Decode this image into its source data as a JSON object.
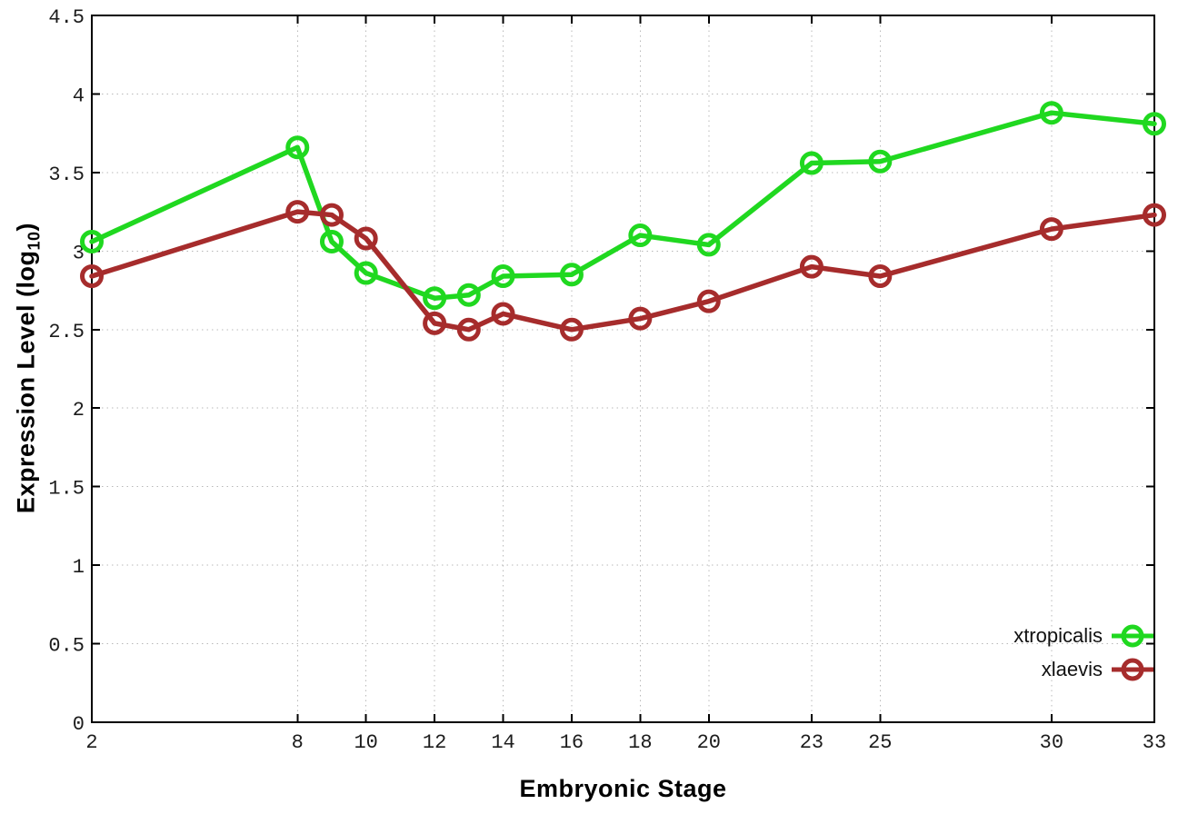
{
  "chart_data": {
    "type": "line",
    "title": "",
    "xlabel": "Embryonic Stage",
    "ylabel_parts": {
      "base": "Expression Level (log",
      "sub": "10",
      "close": ")"
    },
    "x": [
      2,
      8,
      9,
      10,
      12,
      13,
      14,
      16,
      18,
      20,
      23,
      25,
      30,
      33
    ],
    "series": [
      {
        "name": "xtropicalis",
        "color": "#20d820",
        "values": [
          3.06,
          3.66,
          3.06,
          2.86,
          2.7,
          2.72,
          2.84,
          2.85,
          3.1,
          3.04,
          3.56,
          3.57,
          3.88,
          3.81
        ]
      },
      {
        "name": "xlaevis",
        "color": "#a62c2c",
        "values": [
          2.84,
          3.25,
          3.23,
          3.08,
          2.54,
          2.5,
          2.6,
          2.5,
          2.57,
          2.68,
          2.9,
          2.84,
          3.14,
          3.23
        ]
      }
    ],
    "xlim": [
      2,
      33
    ],
    "ylim": [
      0,
      4.5
    ],
    "xticks": [
      2,
      8,
      10,
      12,
      14,
      16,
      18,
      20,
      23,
      25,
      30,
      33
    ],
    "xtick_labels": [
      "2",
      "8",
      "10",
      "12",
      "14",
      "16",
      "18",
      "20",
      "23",
      "25",
      "30",
      "33"
    ],
    "yticks": [
      0,
      0.5,
      1,
      1.5,
      2,
      2.5,
      3,
      3.5,
      4,
      4.5
    ],
    "ytick_labels": [
      "0",
      "0.5",
      "1",
      "1.5",
      "2",
      "2.5",
      "3",
      "3.5",
      "4",
      "4.5"
    ],
    "grid": true,
    "legend_position": "bottom-right",
    "marker": "open-circle"
  },
  "colors": {
    "background": "#ffffff",
    "frame": "#000000",
    "gridline": "#b9b9b9",
    "tick_text": "#1c1c1c"
  }
}
